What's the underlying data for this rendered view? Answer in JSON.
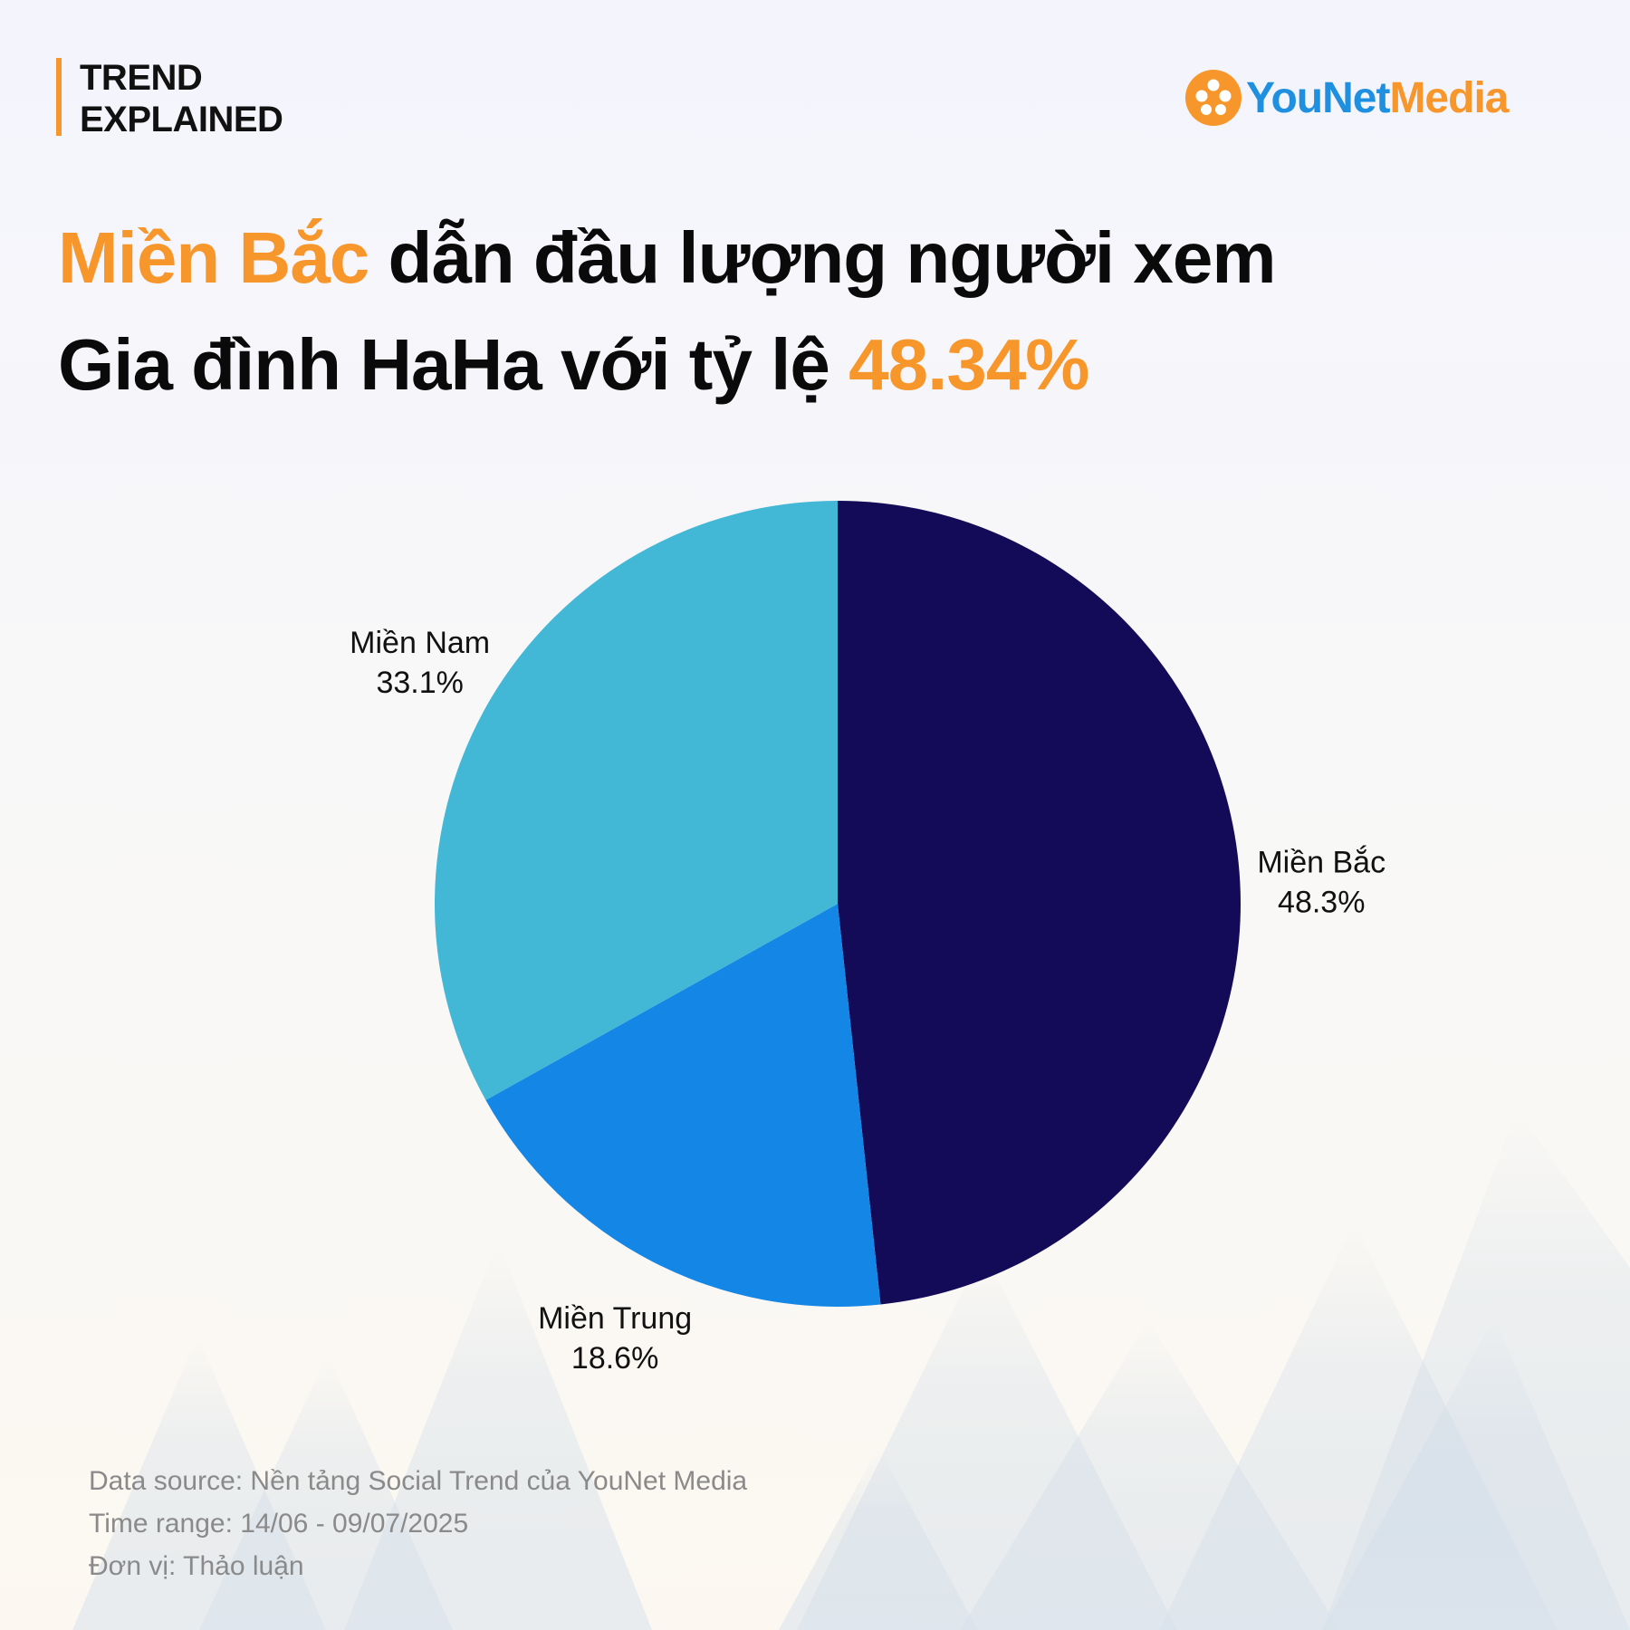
{
  "brand": {
    "line1": "TREND",
    "line2": "EXPLAINED"
  },
  "logo": {
    "icon": "younet-flower-icon",
    "part1": "YouNet",
    "part2": "Media"
  },
  "headline": {
    "highlight1": "Miền Bắc",
    "text1": " dẫn đầu lượng người xem",
    "text2": "Gia đình HaHa với tỷ lệ ",
    "highlight2": "48.34%"
  },
  "chart_data": {
    "type": "pie",
    "categories": [
      "Miền Bắc",
      "Miền Trung",
      "Miền Nam"
    ],
    "values": [
      48.3,
      18.6,
      33.1
    ],
    "value_labels": [
      "48.3%",
      "18.6%",
      "33.1%"
    ],
    "colors": [
      "#130b58",
      "#1487e6",
      "#42b7d6"
    ],
    "start_angle_deg": 0,
    "direction": "clockwise"
  },
  "footer": {
    "source": "Data source: Nền tảng Social Trend của YouNet Media",
    "time_range": "Time range: 14/06 - 09/07/2025",
    "unit": "Đơn vị: Thảo luận"
  },
  "colors": {
    "accent": "#f7962a",
    "logo_blue": "#1f8fe0"
  }
}
